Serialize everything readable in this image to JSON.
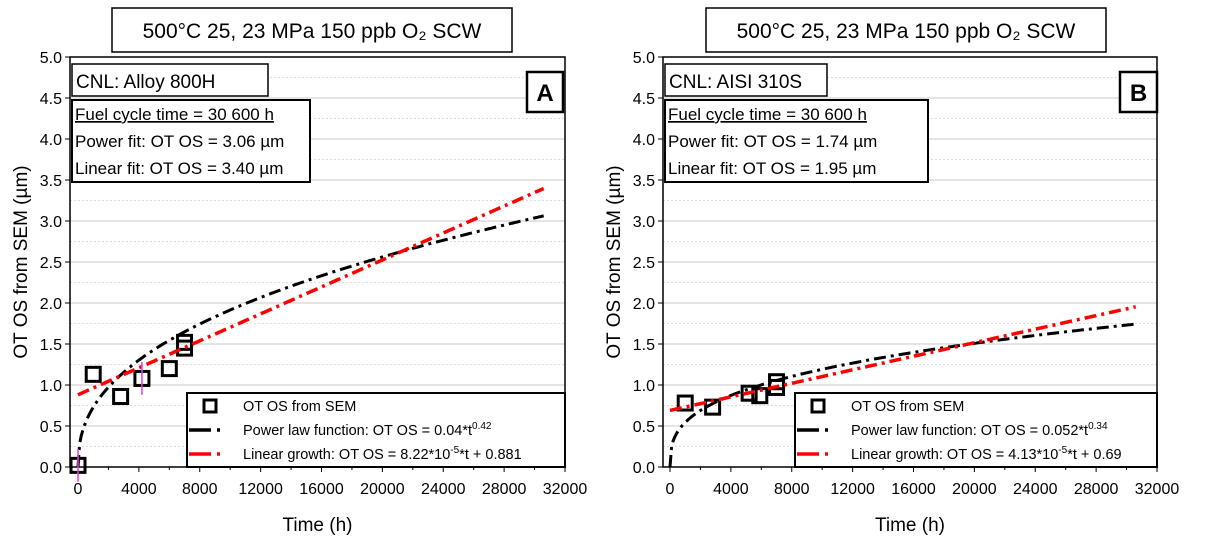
{
  "chart_data": [
    {
      "type": "scatter",
      "title": "500°C 25, 23 MPa 150 ppb O₂ SCW",
      "panel_label": "A",
      "material": "CNL: Alloy 800H",
      "info": [
        "Fuel cycle time = 30 600 h",
        "Power fit: OT OS = 3.06 µm",
        "Linear fit: OT OS = 3.40 µm"
      ],
      "xlabel": "Time (h)",
      "ylabel": "OT OS from SEM (µm)",
      "xlim": [
        0,
        32000
      ],
      "ylim": [
        0,
        5
      ],
      "xticks": [
        "0",
        "4000",
        "8000",
        "12000",
        "16000",
        "20000",
        "24000",
        "28000",
        "32000"
      ],
      "yticks": [
        "0.0",
        "0.5",
        "1.0",
        "1.5",
        "2.0",
        "2.5",
        "3.0",
        "3.5",
        "4.0",
        "4.5",
        "5.0"
      ],
      "grid": true,
      "legend_position": "bottom-right",
      "series": [
        {
          "name": "OT OS from SEM",
          "kind": "points",
          "color": "#000000",
          "x": [
            0,
            1000,
            2800,
            4200,
            6000,
            7000,
            7000
          ],
          "y": [
            0.02,
            1.13,
            0.86,
            1.08,
            1.2,
            1.45,
            1.52
          ]
        },
        {
          "name": "Power law function: OT OS = 0.04*t",
          "exponent": "0.42",
          "kind": "power",
          "a": 0.04,
          "b": 0.42,
          "xmax": 30600,
          "color": "#000000"
        },
        {
          "name": "Linear growth: OT OS = 8.22*10",
          "exponent": "-5",
          "suffix": "*t + 0.881",
          "kind": "linear",
          "slope": 8.22e-05,
          "intercept": 0.881,
          "xmax": 30600,
          "color": "#ff0000"
        }
      ]
    },
    {
      "type": "scatter",
      "title": "500°C 25, 23 MPa 150 ppb O₂ SCW",
      "panel_label": "B",
      "material": "CNL: AISI 310S",
      "info": [
        "Fuel cycle time = 30 600 h",
        "Power fit: OT OS = 1.74 µm",
        "Linear fit: OT OS = 1.95 µm"
      ],
      "xlabel": "Time (h)",
      "ylabel": "OT OS from SEM (µm)",
      "xlim": [
        0,
        32000
      ],
      "ylim": [
        0,
        5
      ],
      "xticks": [
        "0",
        "4000",
        "8000",
        "12000",
        "16000",
        "20000",
        "24000",
        "28000",
        "32000"
      ],
      "yticks": [
        "0.0",
        "0.5",
        "1.0",
        "1.5",
        "2.0",
        "2.5",
        "3.0",
        "3.5",
        "4.0",
        "4.5",
        "5.0"
      ],
      "grid": true,
      "legend_position": "bottom-right",
      "series": [
        {
          "name": "OT OS from SEM",
          "kind": "points",
          "color": "#000000",
          "x": [
            1000,
            2800,
            5200,
            5900,
            7000,
            7000
          ],
          "y": [
            0.78,
            0.73,
            0.9,
            0.87,
            0.97,
            1.04
          ]
        },
        {
          "name": "Power law function: OT OS = 0.052*t",
          "exponent": "0.34",
          "kind": "power",
          "a": 0.052,
          "b": 0.34,
          "xmax": 30600,
          "color": "#000000"
        },
        {
          "name": "Linear growth: OT OS = 4.13*10",
          "exponent": "-5",
          "suffix": "*t + 0.69",
          "kind": "linear",
          "slope": 4.13e-05,
          "intercept": 0.69,
          "xmax": 30600,
          "color": "#ff0000"
        }
      ]
    }
  ]
}
